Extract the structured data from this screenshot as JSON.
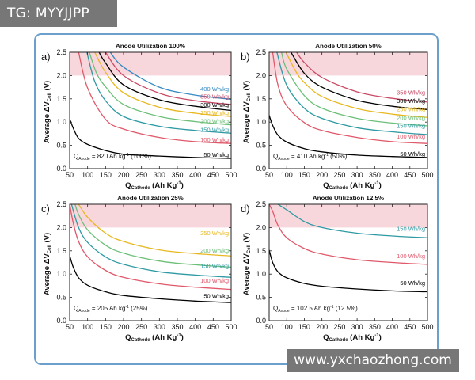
{
  "badges": {
    "top_left": "TG: MYYJJPP",
    "bottom_right": "www.yxchaozhong.com"
  },
  "colors": {
    "frame": "#6d9fcc",
    "band": "#f8d7dc",
    "50": "#000000",
    "100": "#e0586a",
    "150": "#2f9aa3",
    "200": "#6dbf78",
    "250": "#e8b820",
    "300": "#000000",
    "350": "#c94a66",
    "400": "#3489c4"
  },
  "chart_data": [
    {
      "type": "line",
      "panel": "a)",
      "title": "Anode Utilization 100%",
      "xlabel": {
        "main": "Q",
        "sub": "Cathode",
        "rest": " (Ah Kg",
        "sup": "-1",
        "end": ")"
      },
      "ylabel": {
        "main": "Average ΔV",
        "sub": "Cell",
        "rest": " (V)"
      },
      "xlim": [
        50,
        500
      ],
      "ylim": [
        0,
        2.5
      ],
      "xticks": [
        "50",
        "100",
        "150",
        "200",
        "250",
        "300",
        "350",
        "400",
        "450",
        "500"
      ],
      "yticks": [
        "0.0",
        "0.5",
        "1.0",
        "1.5",
        "2.0",
        "2.5"
      ],
      "shaded_band": [
        2.0,
        2.5
      ],
      "annotation": {
        "q": "Q",
        "sub": "Anode",
        "mid": " = 820 Ah kg",
        "sup": "-1",
        "end": " (100%)"
      },
      "series": [
        {
          "name": "50 Wh/kg",
          "label": "50 Wh/kg",
          "x": [
            50,
            60,
            75,
            100,
            150,
            200,
            300,
            400,
            500
          ],
          "y": [
            1.07,
            0.87,
            0.65,
            0.52,
            0.39,
            0.31,
            0.27,
            0.24,
            0.22
          ]
        },
        {
          "name": "100 Wh/kg",
          "label": "100 Wh/kg",
          "x": [
            75,
            100,
            150,
            200,
            300,
            400,
            500
          ],
          "y": [
            2.5,
            1.73,
            1.06,
            0.85,
            0.67,
            0.58,
            0.54
          ]
        },
        {
          "name": "150 Wh/kg",
          "label": "150 Wh/kg",
          "x": [
            98,
            120,
            150,
            200,
            300,
            400,
            500
          ],
          "y": [
            2.5,
            1.87,
            1.46,
            1.12,
            0.91,
            0.82,
            0.76
          ]
        },
        {
          "name": "200 Wh/kg",
          "label": "200 Wh/kg",
          "x": [
            105,
            125,
            150,
            200,
            300,
            400,
            500
          ],
          "y": [
            2.5,
            2.05,
            1.76,
            1.38,
            1.12,
            1.01,
            0.94
          ]
        },
        {
          "name": "250 Wh/kg",
          "label": "250 Wh/kg",
          "x": [
            120,
            150,
            200,
            300,
            400,
            500
          ],
          "y": [
            2.5,
            2.07,
            1.63,
            1.32,
            1.19,
            1.12
          ]
        },
        {
          "name": "300 Wh/kg",
          "label": "300 Wh/kg",
          "x": [
            132,
            150,
            200,
            300,
            400,
            500
          ],
          "y": [
            2.5,
            2.27,
            1.8,
            1.48,
            1.34,
            1.25
          ]
        },
        {
          "name": "350 Wh/kg",
          "label": "350 Wh/kg",
          "x": [
            150,
            200,
            300,
            400,
            500
          ],
          "y": [
            2.5,
            2.0,
            1.62,
            1.46,
            1.38
          ]
        },
        {
          "name": "400 Wh/kg",
          "label": "400 Wh/kg",
          "x": [
            163,
            200,
            300,
            400,
            500
          ],
          "y": [
            2.5,
            2.18,
            1.75,
            1.58,
            1.49
          ]
        }
      ],
      "label_values": {
        "50": 0.22,
        "100": 0.54,
        "150": 0.76,
        "200": 0.94,
        "250": 1.12,
        "300": 1.25,
        "350": 1.38,
        "400": 1.49
      },
      "label_y_override": {
        "50": 0.22,
        "100": 0.54,
        "150": 0.76,
        "200": 0.94,
        "250": 1.12,
        "300": 1.29,
        "350": 1.47,
        "400": 1.63
      }
    },
    {
      "type": "line",
      "panel": "b)",
      "title": "Anode Utilization 50%",
      "xlabel": {
        "main": "Q",
        "sub": "Cathode",
        "rest": " (Ah Kg",
        "sup": "-1",
        "end": ")"
      },
      "ylabel": {
        "main": "Average ΔV",
        "sub": "Cell",
        "rest": " (V)"
      },
      "xlim": [
        50,
        500
      ],
      "ylim": [
        0,
        2.5
      ],
      "xticks": [
        "50",
        "100",
        "150",
        "200",
        "250",
        "300",
        "350",
        "400",
        "450",
        "500"
      ],
      "yticks": [
        "0.0",
        "0.5",
        "1.0",
        "1.5",
        "2.0",
        "2.5"
      ],
      "shaded_band": [
        2.0,
        2.5
      ],
      "annotation": {
        "q": "Q",
        "sub": "Anode",
        "mid": " = 410 Ah kg",
        "sup": "-1",
        "end": " (50%)"
      },
      "series": [
        {
          "name": "50 Wh/kg",
          "label": "50 Wh/kg",
          "x": [
            50,
            60,
            75,
            100,
            150,
            200,
            300,
            400,
            500
          ],
          "y": [
            1.15,
            0.93,
            0.72,
            0.57,
            0.43,
            0.36,
            0.29,
            0.26,
            0.24
          ]
        },
        {
          "name": "100 Wh/kg",
          "label": "100 Wh/kg",
          "x": [
            60,
            75,
            100,
            150,
            200,
            300,
            400,
            500
          ],
          "y": [
            2.5,
            1.8,
            1.35,
            0.99,
            0.82,
            0.67,
            0.58,
            0.54
          ]
        },
        {
          "name": "150 Wh/kg",
          "label": "150 Wh/kg",
          "x": [
            72,
            100,
            150,
            200,
            300,
            400,
            500
          ],
          "y": [
            2.5,
            1.79,
            1.3,
            1.08,
            0.88,
            0.79,
            0.73
          ]
        },
        {
          "name": "200 Wh/kg",
          "label": "200 Wh/kg",
          "x": [
            85,
            100,
            150,
            200,
            300,
            400,
            500
          ],
          "y": [
            2.5,
            2.14,
            1.57,
            1.3,
            1.08,
            0.98,
            0.92
          ]
        },
        {
          "name": "250 Wh/kg",
          "label": "250 Wh/kg",
          "x": [
            98,
            125,
            150,
            200,
            300,
            400,
            500
          ],
          "y": [
            2.5,
            2.1,
            1.85,
            1.55,
            1.29,
            1.17,
            1.1
          ]
        },
        {
          "name": "300 Wh/kg",
          "label": "300 Wh/kg",
          "x": [
            112,
            150,
            200,
            300,
            400,
            500
          ],
          "y": [
            2.5,
            2.05,
            1.75,
            1.47,
            1.34,
            1.27
          ]
        },
        {
          "name": "350 Wh/kg",
          "label": "350 Wh/kg",
          "x": [
            128,
            150,
            200,
            300,
            400,
            500
          ],
          "y": [
            2.5,
            2.28,
            1.96,
            1.65,
            1.51,
            1.43
          ]
        }
      ],
      "label_values": {
        "50": 0.24,
        "100": 0.54,
        "150": 0.73,
        "200": 0.92,
        "250": 1.1,
        "300": 1.27,
        "350": 1.43
      },
      "label_y_override": {
        "50": 0.24,
        "100": 0.61,
        "150": 0.84,
        "200": 1.01,
        "250": 1.2,
        "300": 1.38,
        "350": 1.56
      }
    },
    {
      "type": "line",
      "panel": "c)",
      "title": "Anode Utilization 25%",
      "xlabel": {
        "main": "Q",
        "sub": "Cathode",
        "rest": " (Ah Kg",
        "sup": "-1",
        "end": ")"
      },
      "ylabel": {
        "main": "Average ΔV",
        "sub": "Cell",
        "rest": " (V)"
      },
      "xlim": [
        50,
        500
      ],
      "ylim": [
        0,
        2.5
      ],
      "xticks": [
        "50",
        "100",
        "150",
        "200",
        "250",
        "300",
        "350",
        "400",
        "450",
        "500"
      ],
      "yticks": [
        "0.0",
        "0.5",
        "1.0",
        "1.5",
        "2.0",
        "2.5"
      ],
      "shaded_band": [
        2.0,
        2.5
      ],
      "annotation": {
        "q": "Q",
        "sub": "Anode",
        "mid": " = 205 Ah kg",
        "sup": "-1",
        "end": " (25%)"
      },
      "series": [
        {
          "name": "50 Wh/kg",
          "label": "50 Wh/kg",
          "x": [
            50,
            60,
            75,
            100,
            150,
            200,
            300,
            400,
            500
          ],
          "y": [
            1.4,
            1.15,
            0.92,
            0.76,
            0.62,
            0.54,
            0.47,
            0.42,
            0.39
          ]
        },
        {
          "name": "100 Wh/kg",
          "label": "100 Wh/kg",
          "x": [
            50,
            60,
            75,
            100,
            150,
            200,
            300,
            400,
            500
          ],
          "y": [
            2.5,
            2.1,
            1.7,
            1.37,
            1.08,
            0.93,
            0.79,
            0.72,
            0.67
          ]
        },
        {
          "name": "150 Wh/kg",
          "label": "150 Wh/kg",
          "x": [
            55,
            75,
            100,
            150,
            200,
            300,
            400,
            500
          ],
          "y": [
            2.5,
            2.0,
            1.68,
            1.37,
            1.21,
            1.05,
            0.98,
            0.93
          ]
        },
        {
          "name": "200 Wh/kg",
          "label": "200 Wh/kg",
          "x": [
            65,
            75,
            100,
            150,
            200,
            300,
            400,
            500
          ],
          "y": [
            2.5,
            2.28,
            1.95,
            1.62,
            1.45,
            1.28,
            1.2,
            1.15
          ]
        },
        {
          "name": "250 Wh/kg",
          "label": "250 Wh/kg",
          "x": [
            75,
            100,
            150,
            200,
            300,
            400,
            500
          ],
          "y": [
            2.5,
            2.22,
            1.88,
            1.7,
            1.52,
            1.44,
            1.39
          ]
        }
      ],
      "label_values": {
        "50": 0.39,
        "100": 0.67,
        "150": 0.93,
        "200": 1.15,
        "250": 1.39
      },
      "label_y_override": {
        "50": 0.45,
        "100": 0.78,
        "150": 1.1,
        "200": 1.43,
        "250": 1.8
      }
    },
    {
      "type": "line",
      "panel": "d)",
      "title": "Anode Utilization 12.5%",
      "xlabel": {
        "main": "Q",
        "sub": "Cathode",
        "rest": " (Ah Kg",
        "sup": "-1",
        "end": ")"
      },
      "ylabel": {
        "main": "Average ΔV",
        "sub": "Cell",
        "rest": " (V)"
      },
      "xlim": [
        50,
        500
      ],
      "ylim": [
        0,
        2.5
      ],
      "xticks": [
        "50",
        "100",
        "150",
        "200",
        "250",
        "300",
        "350",
        "400",
        "450",
        "500"
      ],
      "yticks": [
        "0.0",
        "0.5",
        "1.0",
        "1.5",
        "2.0",
        "2.5"
      ],
      "shaded_band": [
        2.0,
        2.5
      ],
      "annotation": {
        "q": "Q",
        "sub": "Anode",
        "mid": " = 102.5 Ah kg",
        "sup": "-1",
        "end": " (12.5%)"
      },
      "series": [
        {
          "name": "50 Wh/kg",
          "label": "50 Wh/kg",
          "x": [
            50,
            60,
            75,
            100,
            150,
            200,
            300,
            400,
            500
          ],
          "y": [
            1.52,
            1.25,
            1.05,
            0.92,
            0.8,
            0.74,
            0.68,
            0.64,
            0.62
          ]
        },
        {
          "name": "100 Wh/kg",
          "label": "100 Wh/kg",
          "x": [
            50,
            60,
            75,
            100,
            150,
            200,
            300,
            400,
            500
          ],
          "y": [
            2.5,
            2.35,
            2.05,
            1.78,
            1.55,
            1.43,
            1.31,
            1.25,
            1.21
          ]
        },
        {
          "name": "150 Wh/kg",
          "label": "150 Wh/kg",
          "x": [
            75,
            100,
            150,
            200,
            300,
            400,
            500
          ],
          "y": [
            2.5,
            2.38,
            2.13,
            2.0,
            1.88,
            1.82,
            1.78
          ]
        }
      ],
      "label_values": {
        "50": 0.62,
        "100": 1.21,
        "150": 1.78
      },
      "label_y_override": {
        "50": 0.73,
        "100": 1.31,
        "150": 1.9
      }
    }
  ]
}
